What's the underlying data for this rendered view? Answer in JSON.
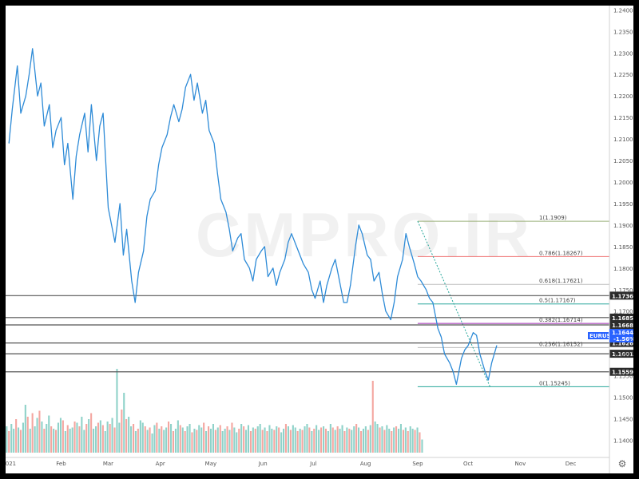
{
  "watermark": "CMPRO.IR",
  "settings_icon": "gear-icon",
  "symbol_badge": {
    "label": "EURUSD",
    "price": "1.16441",
    "change": "-1.56%",
    "color": "#2962ff"
  },
  "chart_data": {
    "type": "line",
    "ylim": [
      1.136,
      1.241
    ],
    "y_ticks": [
      "1.14000",
      "1.14500",
      "1.15000",
      "1.15500",
      "1.16000",
      "1.16500",
      "1.17000",
      "1.17500",
      "1.18000",
      "1.18500",
      "1.19000",
      "1.19500",
      "1.20000",
      "1.20500",
      "1.21000",
      "1.21500",
      "1.22000",
      "1.22500",
      "1.23000",
      "1.23500",
      "1.24000"
    ],
    "x_tick_labels": [
      "2021",
      "Feb",
      "Mar",
      "Apr",
      "May",
      "Jun",
      "Jul",
      "Aug",
      "Sep",
      "Oct",
      "Nov",
      "Dec"
    ],
    "x_tick_days": [
      0,
      31,
      59,
      90,
      120,
      151,
      181,
      212,
      243,
      273,
      304,
      334
    ],
    "x_range_days": [
      -2,
      357
    ],
    "grid": false,
    "series": [
      {
        "name": "EURUSD",
        "color": "#2e8bd7",
        "x": [
          0,
          2,
          5,
          7,
          10,
          12,
          14,
          17,
          19,
          21,
          24,
          26,
          28,
          31,
          33,
          35,
          38,
          40,
          42,
          45,
          47,
          49,
          52,
          54,
          56,
          59,
          61,
          63,
          66,
          68,
          70,
          73,
          75,
          77,
          80,
          82,
          84,
          87,
          89,
          91,
          94,
          96,
          98,
          101,
          103,
          105,
          108,
          110,
          112,
          115,
          117,
          119,
          122,
          124,
          126,
          129,
          131,
          133,
          136,
          138,
          140,
          143,
          145,
          147,
          150,
          152,
          154,
          157,
          159,
          161,
          164,
          166,
          168,
          171,
          173,
          175,
          178,
          180,
          182,
          185,
          187,
          189,
          192,
          194,
          196,
          199,
          201,
          203,
          206,
          208,
          210,
          213,
          215,
          217,
          220,
          222,
          224,
          227,
          229,
          231,
          234,
          236,
          238,
          241,
          243,
          245,
          248,
          250,
          252,
          255,
          257,
          259,
          262,
          264,
          266,
          269,
          271,
          273,
          276,
          278,
          280,
          283,
          285,
          287,
          290
        ],
        "y": [
          1.209,
          1.217,
          1.227,
          1.216,
          1.22,
          1.225,
          1.231,
          1.22,
          1.223,
          1.213,
          1.218,
          1.208,
          1.212,
          1.215,
          1.204,
          1.209,
          1.196,
          1.206,
          1.211,
          1.216,
          1.207,
          1.218,
          1.205,
          1.213,
          1.216,
          1.194,
          1.19,
          1.186,
          1.195,
          1.183,
          1.189,
          1.177,
          1.172,
          1.179,
          1.184,
          1.192,
          1.196,
          1.198,
          1.204,
          1.208,
          1.211,
          1.215,
          1.218,
          1.214,
          1.217,
          1.222,
          1.225,
          1.219,
          1.223,
          1.216,
          1.219,
          1.212,
          1.209,
          1.202,
          1.196,
          1.193,
          1.189,
          1.184,
          1.187,
          1.188,
          1.182,
          1.18,
          1.177,
          1.182,
          1.184,
          1.185,
          1.178,
          1.18,
          1.176,
          1.179,
          1.182,
          1.186,
          1.188,
          1.185,
          1.183,
          1.181,
          1.179,
          1.175,
          1.173,
          1.177,
          1.172,
          1.176,
          1.18,
          1.182,
          1.178,
          1.172,
          1.172,
          1.176,
          1.185,
          1.19,
          1.188,
          1.183,
          1.182,
          1.177,
          1.179,
          1.174,
          1.17,
          1.168,
          1.172,
          1.178,
          1.182,
          1.188,
          1.185,
          1.181,
          1.178,
          1.177,
          1.175,
          1.173,
          1.172,
          1.166,
          1.164,
          1.16,
          1.158,
          1.156,
          1.153,
          1.159,
          1.161,
          1.162,
          1.165,
          1.1644,
          1.16,
          1.156,
          1.154,
          1.158,
          1.162
        ]
      }
    ],
    "volume": {
      "max": 100,
      "heights": [
        22,
        18,
        24,
        20,
        28,
        21,
        19,
        25,
        40,
        30,
        20,
        33,
        22,
        29,
        35,
        26,
        20,
        24,
        31,
        22,
        20,
        19,
        25,
        29,
        27,
        18,
        23,
        20,
        21,
        26,
        25,
        22,
        30,
        19,
        24,
        28,
        33,
        20,
        22,
        25,
        27,
        23,
        18,
        26,
        24,
        29,
        21,
        70,
        25,
        36,
        50,
        28,
        30,
        22,
        24,
        18,
        20,
        27,
        25,
        22,
        19,
        21,
        16,
        23,
        25,
        20,
        22,
        19,
        21,
        26,
        24,
        18,
        20,
        27,
        23,
        21,
        18,
        22,
        24,
        17,
        20,
        19,
        23,
        21,
        25,
        18,
        22,
        20,
        24,
        19,
        21,
        23,
        18,
        20,
        22,
        19,
        25,
        21,
        17,
        20,
        24,
        22,
        19,
        23,
        18,
        21,
        20,
        22,
        24,
        19,
        21,
        18,
        23,
        20,
        19,
        22,
        21,
        17,
        20,
        24,
        22,
        19,
        23,
        21,
        18,
        20,
        19,
        22,
        24,
        21,
        18,
        20,
        23,
        19,
        21,
        22,
        20,
        18,
        24,
        21,
        19,
        22,
        20,
        23,
        18,
        21,
        20,
        19,
        22,
        24,
        21,
        18,
        20,
        22,
        19,
        23,
        60,
        26,
        24,
        21,
        22,
        19,
        23,
        20,
        18,
        21,
        22,
        20,
        24,
        19,
        21,
        18,
        22,
        20,
        19,
        21,
        17,
        11
      ]
    },
    "fibonacci": {
      "x_start_day": 243,
      "line_color": "#888888",
      "levels": [
        {
          "label": "1(1.1909)",
          "ratio": 1,
          "price": 1.1909,
          "color": "#9bb07a"
        },
        {
          "label": "0.786(1.18267)",
          "ratio": 0.786,
          "price": 1.18267,
          "color": "#ef6f6f"
        },
        {
          "label": "0.618(1.17621)",
          "ratio": 0.618,
          "price": 1.17621,
          "color": "#bbbbbb"
        },
        {
          "label": "0.5(1.17167)",
          "ratio": 0.5,
          "price": 1.17167,
          "color": "#26a69a"
        },
        {
          "label": "0.382(1.16714)",
          "ratio": 0.382,
          "price": 1.16714,
          "color": "#9c27b0"
        },
        {
          "label": "0.236(1.16152)",
          "ratio": 0.236,
          "price": 1.16152,
          "color": "#bbbbbb"
        },
        {
          "label": "0(1.15245)",
          "ratio": 0,
          "price": 1.15245,
          "color": "#26a69a"
        }
      ]
    },
    "horizontal_levels": [
      {
        "label": "1.17360",
        "price": 1.1736
      },
      {
        "label": "1.16850",
        "price": 1.1685
      },
      {
        "label": "1.16680",
        "price": 1.1668
      },
      {
        "label": "1.16260",
        "price": 1.1626
      },
      {
        "label": "1.16010",
        "price": 1.1601
      },
      {
        "label": "1.15590",
        "price": 1.1559
      }
    ]
  }
}
